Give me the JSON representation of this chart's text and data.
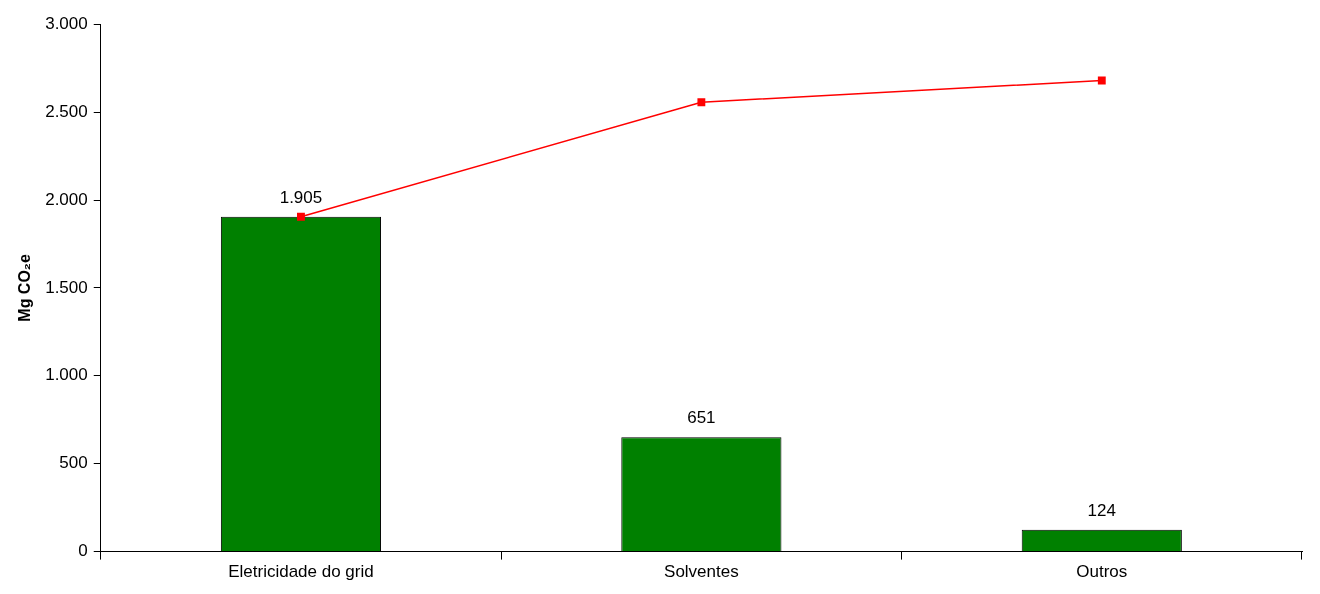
{
  "chart_data": {
    "type": "bar",
    "ylabel": "Mg CO₂e",
    "categories": [
      "Eletricidade do grid",
      "Solventes",
      "Outros"
    ],
    "series": [
      {
        "color": "#008000",
        "values": [
          1905,
          651,
          124
        ],
        "value_labels": [
          "1.905",
          "651",
          "124"
        ]
      },
      {
        "type": "line",
        "color": "#ff0000",
        "values": [
          1905,
          2556,
          2680
        ],
        "marker": "square",
        "line_style": "solid"
      }
    ],
    "ylim": [
      0,
      3000
    ],
    "yticks": [
      {
        "value": 0,
        "label": "0"
      },
      {
        "value": 500,
        "label": "500"
      },
      {
        "value": 1000,
        "label": "1.000"
      },
      {
        "value": 1500,
        "label": "1.500"
      },
      {
        "value": 2000,
        "label": "2.000"
      },
      {
        "value": 2500,
        "label": "2.500"
      },
      {
        "value": 3000,
        "label": "3.000"
      }
    ],
    "grid": false,
    "legend": false
  }
}
